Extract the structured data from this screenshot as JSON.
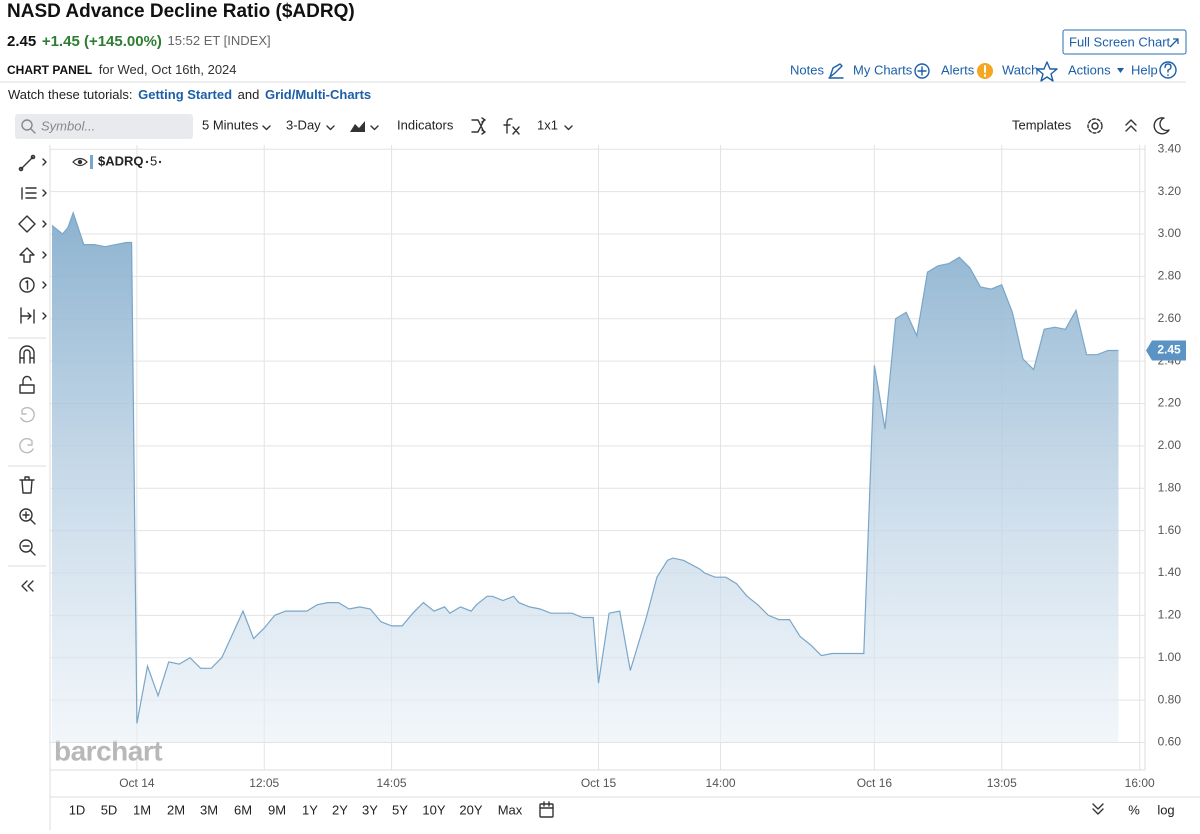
{
  "header": {
    "title": "NASD Advance Decline Ratio ($ADRQ)",
    "last": "2.45",
    "change": "+1.45 (+145.00%)",
    "time": "15:52 ET [INDEX]",
    "full_screen": "Full Screen Chart",
    "panel_label": "CHART PANEL",
    "panel_date": "for Wed, Oct 16th, 2024",
    "links": [
      "Notes",
      "My Charts",
      "Alerts",
      "Watch",
      "Actions",
      "Help"
    ]
  },
  "tutorials": {
    "intro": "Watch these tutorials:",
    "first": "Getting Started",
    "joiner": "and",
    "second": "Grid/Multi-Charts"
  },
  "toolbar": {
    "symbol_placeholder": "Symbol...",
    "interval": "5 Minutes",
    "range": "3-Day",
    "indicators": "Indicators",
    "layout": "1x1",
    "templates": "Templates"
  },
  "periods": [
    "1D",
    "5D",
    "1M",
    "2M",
    "3M",
    "6M",
    "9M",
    "1Y",
    "2Y",
    "3Y",
    "5Y",
    "10Y",
    "20Y",
    "Max"
  ],
  "scale_options": [
    "%",
    "log"
  ],
  "chart_data": {
    "type": "area",
    "watermark": "barchart",
    "legend_interval": "5",
    "grid": true,
    "series": [
      {
        "name": "$ADRQ",
        "color": "#7aa6c8",
        "x": [
          0,
          2,
          3,
          4,
          6,
          8,
          10,
          14,
          15,
          16,
          18,
          20,
          22,
          24,
          26,
          28,
          30,
          32,
          36,
          38,
          40,
          42,
          44,
          48,
          50,
          52,
          54,
          56,
          58,
          60,
          62,
          64,
          66,
          68,
          70,
          72,
          74,
          75,
          77,
          79,
          80,
          82,
          83,
          85,
          87,
          88,
          90,
          92,
          94,
          96,
          98,
          100,
          102,
          103,
          105,
          107,
          109,
          112,
          114,
          116,
          117,
          119,
          122,
          123,
          125,
          127,
          129,
          131,
          133,
          135,
          137,
          139,
          141,
          143,
          145,
          147,
          153,
          155,
          157,
          159,
          161,
          163,
          165,
          167,
          169,
          171,
          173,
          175,
          177,
          179,
          181,
          183,
          185,
          187,
          189,
          191,
          193,
          195,
          197,
          199,
          201
        ],
        "values": [
          3.04,
          3.0,
          3.03,
          3.1,
          2.95,
          2.95,
          2.94,
          2.96,
          2.96,
          0.69,
          0.96,
          0.82,
          0.98,
          0.97,
          1.0,
          0.95,
          0.95,
          1.0,
          1.22,
          1.09,
          1.14,
          1.2,
          1.22,
          1.22,
          1.25,
          1.26,
          1.26,
          1.23,
          1.24,
          1.23,
          1.17,
          1.15,
          1.15,
          1.21,
          1.26,
          1.22,
          1.24,
          1.21,
          1.24,
          1.22,
          1.25,
          1.29,
          1.29,
          1.27,
          1.29,
          1.26,
          1.24,
          1.23,
          1.21,
          1.21,
          1.21,
          1.19,
          1.19,
          0.88,
          1.21,
          1.22,
          0.94,
          1.19,
          1.38,
          1.46,
          1.47,
          1.46,
          1.42,
          1.4,
          1.38,
          1.38,
          1.35,
          1.29,
          1.25,
          1.2,
          1.18,
          1.18,
          1.1,
          1.06,
          1.01,
          1.02,
          1.02,
          2.38,
          2.08,
          2.6,
          2.63,
          2.52,
          2.82,
          2.85,
          2.86,
          2.89,
          2.84,
          2.75,
          2.74,
          2.76,
          2.63,
          2.41,
          2.36,
          2.55,
          2.56,
          2.55,
          2.64,
          2.43,
          2.43,
          2.45,
          2.45
        ]
      }
    ],
    "xlim": [
      0,
      206
    ],
    "xticks": [
      {
        "value": 16,
        "label": "Oct 14"
      },
      {
        "value": 40,
        "label": "12:05"
      },
      {
        "value": 64,
        "label": "14:05"
      },
      {
        "value": 103,
        "label": "Oct 15"
      },
      {
        "value": 126,
        "label": "14:00"
      },
      {
        "value": 155,
        "label": "Oct 16"
      },
      {
        "value": 179,
        "label": "13:05"
      },
      {
        "value": 205,
        "label": "16:00"
      }
    ],
    "ylim": [
      0.47,
      3.42
    ],
    "yticks": [
      {
        "value": 0.6,
        "label": "0.60"
      },
      {
        "value": 0.8,
        "label": "0.80"
      },
      {
        "value": 1,
        "label": "1.00"
      },
      {
        "value": 1.2,
        "label": "1.20"
      },
      {
        "value": 1.4,
        "label": "1.40"
      },
      {
        "value": 1.6,
        "label": "1.60"
      },
      {
        "value": 1.8,
        "label": "1.80"
      },
      {
        "value": 2,
        "label": "2.00"
      },
      {
        "value": 2.2,
        "label": "2.20"
      },
      {
        "value": 2.4,
        "label": "2.40"
      },
      {
        "value": 2.6,
        "label": "2.60"
      },
      {
        "value": 2.8,
        "label": "2.80"
      },
      {
        "value": 3,
        "label": "3.00"
      },
      {
        "value": 3.2,
        "label": "3.20"
      },
      {
        "value": 3.4,
        "label": "3.40"
      }
    ]
  }
}
